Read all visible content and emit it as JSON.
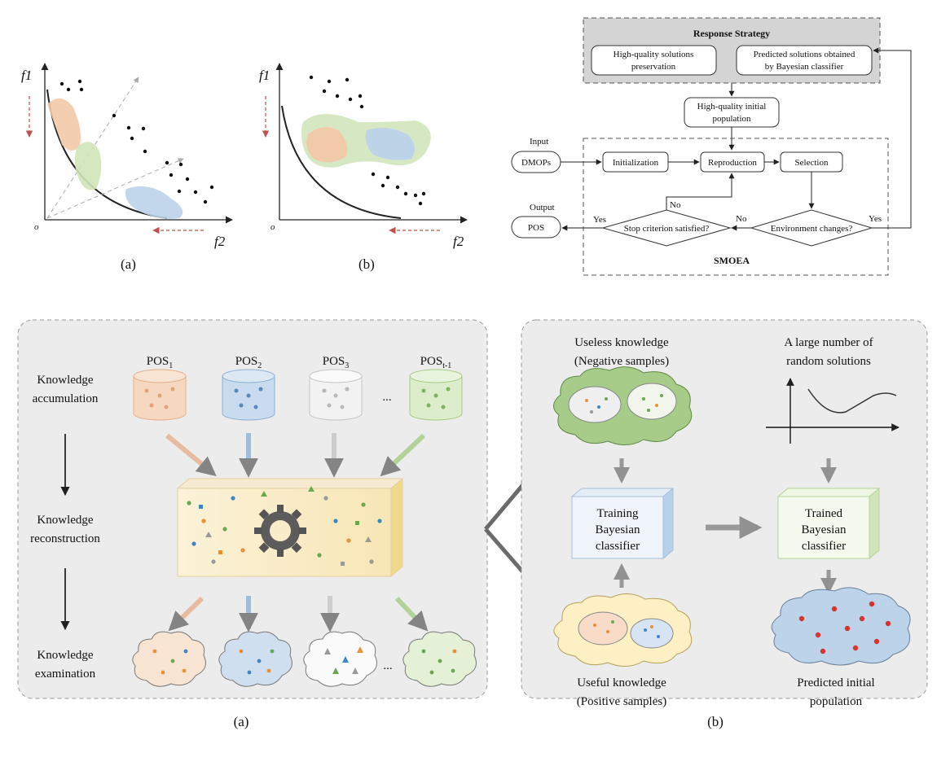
{
  "top_left": {
    "axis_f1": "f1",
    "axis_f2": "f2",
    "origin": "o",
    "caption_a": "(a)",
    "caption_b": "(b)"
  },
  "flowchart": {
    "response_title": "Response Strategy",
    "box_preserve_1": "High-quality solutions",
    "box_preserve_2": "preservation",
    "box_predict_1": "Predicted solutions obtained",
    "box_predict_2": "by Bayesian classifier",
    "init_pop_1": "High-quality initial",
    "init_pop_2": "population",
    "input_label": "Input",
    "dmops": "DMOPs",
    "initialization": "Initialization",
    "reproduction": "Reproduction",
    "selection": "Selection",
    "no_top": "No",
    "no_mid": "No",
    "yes_left": "Yes",
    "yes_right": "Yes",
    "output_label": "Output",
    "pos": "POS",
    "stop": "Stop criterion satisfied?",
    "env": "Environment changes?",
    "smoea": "SMOEA"
  },
  "panel_a": {
    "row1_1": "Knowledge",
    "row1_2": "accumulation",
    "row2_1": "Knowledge",
    "row2_2": "reconstruction",
    "row3_1": "Knowledge",
    "row3_2": "examination",
    "pos1": "POS",
    "pos1_sub": "1",
    "pos2": "POS",
    "pos2_sub": "2",
    "pos3": "POS",
    "pos3_sub": "3",
    "pos4": "POS",
    "pos4_sub": "t-1",
    "dots_top": "...",
    "dots_bottom": "...",
    "caption": "(a)"
  },
  "panel_b": {
    "useless_1": "Useless knowledge",
    "useless_2": "(Negative samples)",
    "random_1": "A large number of",
    "random_2": "random solutions",
    "training_1": "Training",
    "training_2": "Bayesian",
    "training_3": "classifier",
    "trained_1": "Trained",
    "trained_2": "Bayesian",
    "trained_3": "classifier",
    "useful_1": "Useful knowledge",
    "useful_2": "(Positive samples)",
    "predicted_1": "Predicted initial",
    "predicted_2": "population",
    "caption": "(b)"
  },
  "colors": {
    "orange": "#f2c9a8",
    "blue": "#bcd3ea",
    "green": "#cfe4b8",
    "grey_box": "#d4d4d4",
    "panel_bg": "#ececec"
  }
}
